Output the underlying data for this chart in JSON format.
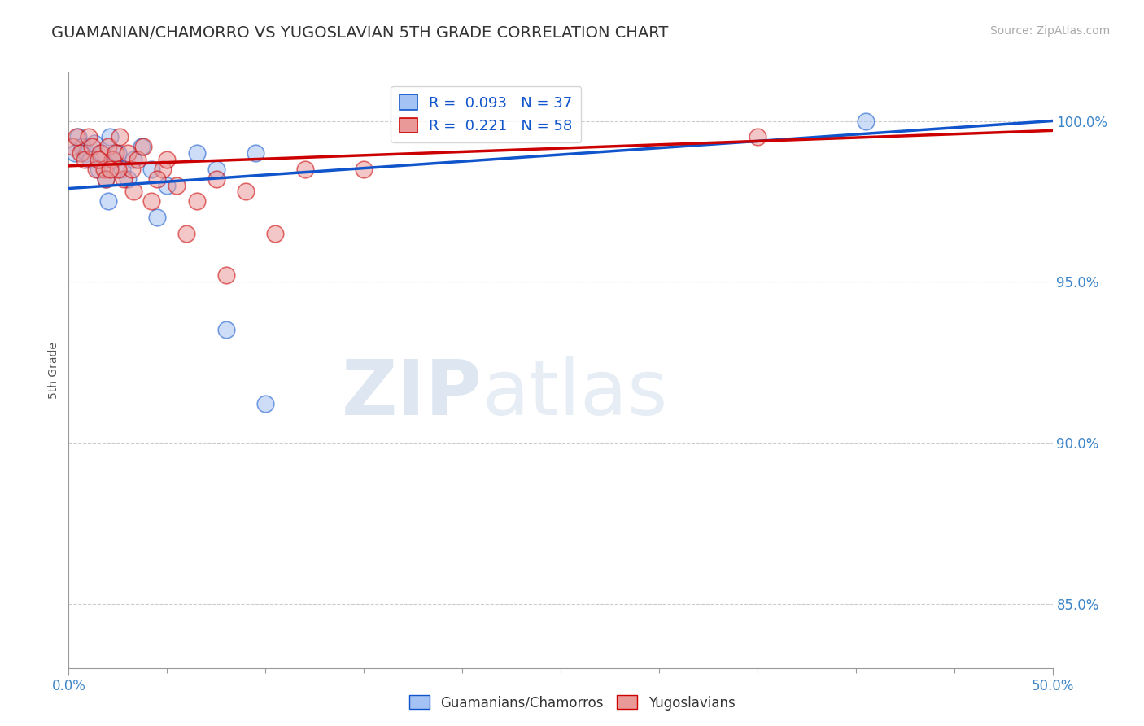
{
  "title": "GUAMANIAN/CHAMORRO VS YUGOSLAVIAN 5TH GRADE CORRELATION CHART",
  "source": "Source: ZipAtlas.com",
  "ylabel": "5th Grade",
  "xlim": [
    0.0,
    50.0
  ],
  "ylim": [
    83.0,
    101.5
  ],
  "yticks": [
    85.0,
    90.0,
    95.0,
    100.0
  ],
  "ytick_labels": [
    "85.0%",
    "90.0%",
    "95.0%",
    "100.0%"
  ],
  "legend_labels": [
    "Guamanians/Chamorros",
    "Yugoslavians"
  ],
  "blue_color": "#a4c2f4",
  "pink_color": "#ea9999",
  "blue_fill_color": "#a4c2f4",
  "pink_fill_color": "#ea9999",
  "blue_line_color": "#1155cc",
  "pink_line_color": "#cc0000",
  "R_blue": 0.093,
  "N_blue": 37,
  "R_pink": 0.221,
  "N_pink": 58,
  "blue_line_y0": 97.9,
  "blue_line_y1": 100.0,
  "pink_line_y0": 98.6,
  "pink_line_y1": 99.7,
  "blue_scatter_x": [
    0.3,
    0.5,
    0.7,
    0.9,
    1.1,
    1.3,
    1.5,
    1.7,
    1.9,
    2.1,
    2.3,
    2.5,
    2.7,
    3.0,
    3.3,
    3.7,
    4.2,
    5.0,
    6.5,
    8.0,
    10.0,
    2.0,
    4.5,
    7.5,
    9.5,
    40.5
  ],
  "blue_scatter_y": [
    99.0,
    99.5,
    99.2,
    99.0,
    98.8,
    99.3,
    98.5,
    99.0,
    98.2,
    99.5,
    98.8,
    99.0,
    98.5,
    98.2,
    98.8,
    99.2,
    98.5,
    98.0,
    99.0,
    93.5,
    91.2,
    97.5,
    97.0,
    98.5,
    99.0,
    100.0
  ],
  "pink_scatter_x": [
    0.2,
    0.4,
    0.6,
    0.8,
    1.0,
    1.2,
    1.4,
    1.6,
    1.8,
    2.0,
    2.2,
    2.4,
    2.6,
    2.8,
    3.0,
    3.2,
    3.5,
    3.8,
    4.2,
    4.8,
    5.5,
    6.5,
    7.5,
    9.0,
    10.5,
    12.0,
    15.0,
    3.3,
    4.5,
    6.0,
    2.5,
    1.5,
    1.9,
    2.1,
    35.0,
    8.0,
    5.0
  ],
  "pink_scatter_y": [
    99.2,
    99.5,
    99.0,
    98.8,
    99.5,
    99.2,
    98.5,
    99.0,
    98.5,
    99.2,
    98.8,
    99.0,
    99.5,
    98.2,
    99.0,
    98.5,
    98.8,
    99.2,
    97.5,
    98.5,
    98.0,
    97.5,
    98.2,
    97.8,
    96.5,
    98.5,
    98.5,
    97.8,
    98.2,
    96.5,
    98.5,
    98.8,
    98.2,
    98.5,
    99.5,
    95.2,
    98.8
  ],
  "watermark_zip": "ZIP",
  "watermark_atlas": "atlas",
  "background_color": "#ffffff",
  "grid_color": "#cccccc",
  "axis_color": "#999999"
}
